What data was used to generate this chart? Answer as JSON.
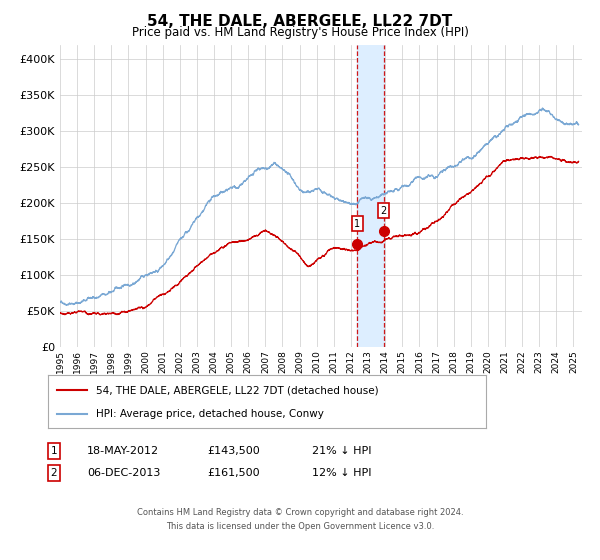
{
  "title": "54, THE DALE, ABERGELE, LL22 7DT",
  "subtitle": "Price paid vs. HM Land Registry's House Price Index (HPI)",
  "legend_line1": "54, THE DALE, ABERGELE, LL22 7DT (detached house)",
  "legend_line2": "HPI: Average price, detached house, Conwy",
  "sale1_date": "18-MAY-2012",
  "sale1_price": 143500,
  "sale1_label": "21% ↓ HPI",
  "sale1_year": 2012.38,
  "sale2_date": "06-DEC-2013",
  "sale2_price": 161500,
  "sale2_label": "12% ↓ HPI",
  "sale2_year": 2013.92,
  "footnote1": "Contains HM Land Registry data © Crown copyright and database right 2024.",
  "footnote2": "This data is licensed under the Open Government Licence v3.0.",
  "red_line_color": "#cc0000",
  "blue_line_color": "#7aa8d4",
  "highlight_color": "#ddeeff",
  "dashed_line_color": "#cc0000",
  "background_color": "#ffffff",
  "grid_color": "#cccccc",
  "ylim": [
    0,
    420000
  ],
  "xlim_start": 1995,
  "xlim_end": 2025.5
}
